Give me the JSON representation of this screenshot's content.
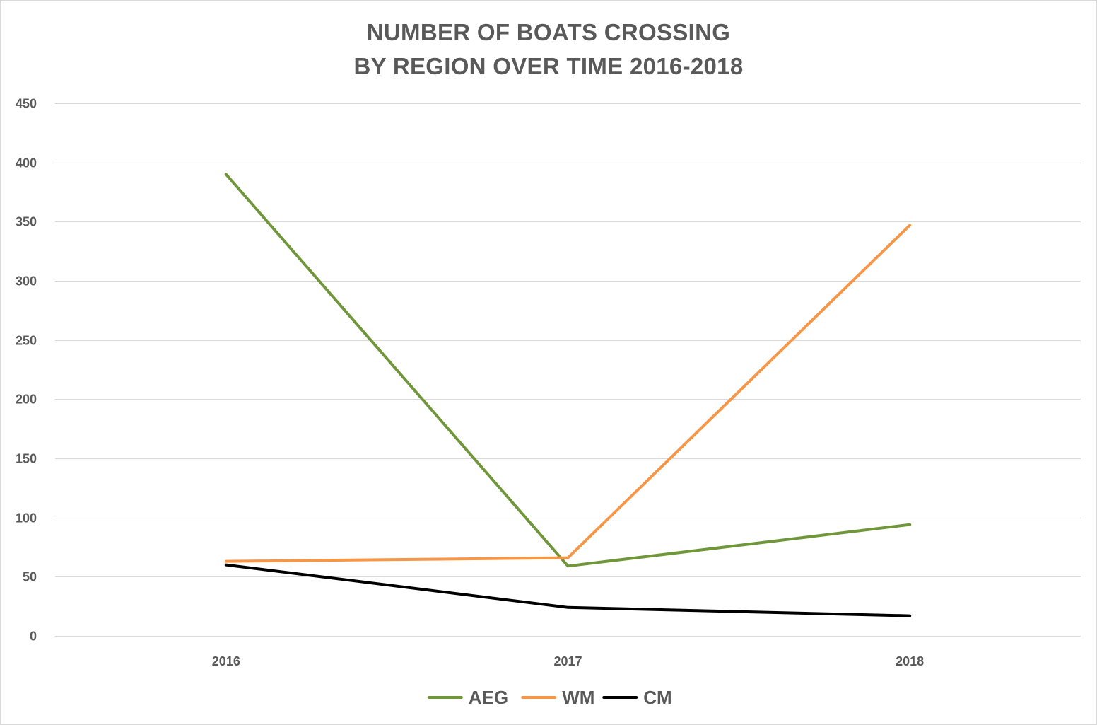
{
  "chart_data": {
    "type": "line",
    "title_lines": [
      "NUMBER OF BOATS CROSSING",
      "BY REGION OVER TIME 2016-2018"
    ],
    "categories": [
      "2016",
      "2017",
      "2018"
    ],
    "series": [
      {
        "name": "AEG",
        "color": "#70963a",
        "values": [
          390,
          59,
          94
        ]
      },
      {
        "name": "WM",
        "color": "#f79646",
        "values": [
          63,
          66,
          347
        ]
      },
      {
        "name": "CM",
        "color": "#000000",
        "values": [
          60,
          24,
          17
        ]
      }
    ],
    "ylim": [
      0,
      450
    ],
    "yticks": [
      0,
      50,
      100,
      150,
      200,
      250,
      300,
      350,
      400,
      450
    ],
    "xlabel": "",
    "ylabel": "",
    "grid": true,
    "legend_position": "bottom"
  }
}
